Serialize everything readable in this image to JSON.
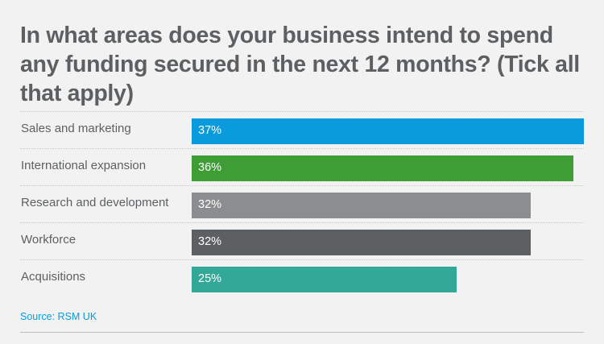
{
  "chart_data": {
    "type": "bar",
    "orientation": "horizontal",
    "title": "In what areas does your business intend to spend any funding secured in the next 12 months? (Tick all that apply)",
    "categories": [
      "Sales and marketing",
      "International expansion",
      "Research and development",
      "Workforce",
      "Acquisitions"
    ],
    "values": [
      37,
      36,
      32,
      32,
      25
    ],
    "value_labels": [
      "37%",
      "36%",
      "32%",
      "32%",
      "25%"
    ],
    "colors": [
      "#0a9bdc",
      "#3e9d35",
      "#8b8d8f",
      "#5d6062",
      "#34a898"
    ],
    "xlim": [
      0,
      37
    ],
    "xlabel": "",
    "ylabel": "",
    "source": "Source: RSM UK"
  }
}
